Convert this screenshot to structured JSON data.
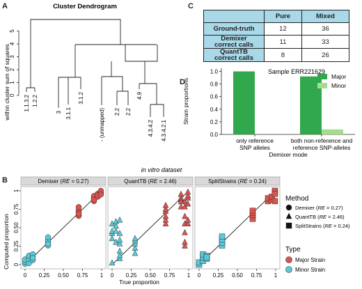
{
  "panels": {
    "A": "A",
    "B": "B",
    "C": "C",
    "D": "D"
  },
  "dendrogram": {
    "title": "Cluster Dendrogram",
    "ylabel": "within cluster sum of squares",
    "yticks": [
      "0",
      "1",
      "2",
      "3",
      "4",
      "5"
    ],
    "leaves": [
      "1.1.3.2",
      "1.2.2",
      "3",
      "3.1.1",
      "3.1.2",
      "- (unmapped)",
      "2.2",
      "2.2",
      "4.9",
      "4.3.4.2",
      "4.3.4.2.1"
    ]
  },
  "table": {
    "headers": [
      "",
      "Pure",
      "Mixed"
    ],
    "rows": [
      {
        "label": "Ground-truth",
        "pure": "12",
        "mixed": "36"
      },
      {
        "label_line1": "Demixer",
        "label_line2": "correct calls",
        "pure": "11",
        "mixed": "33"
      },
      {
        "label_line1": "QuantTB",
        "label_line2": "correct calls",
        "pure": "8",
        "mixed": "26"
      }
    ]
  },
  "colors": {
    "major_green": "#31a84d",
    "minor_green": "#a6dd8c",
    "major_red": "#d9534f",
    "minor_cyan": "#5ac8d8",
    "header_blue": "#a9d8e9",
    "strip": "#d9d9d9"
  },
  "chart_data": [
    {
      "type": "bar",
      "title": "Sample ERR221629",
      "xlabel": "Demixer mode",
      "ylabel": "Strain proportions",
      "categories_line1": [
        "only reference",
        "both non-reference and"
      ],
      "categories_line2": [
        "SNP alleles",
        "reference SNP-alleles"
      ],
      "ylim": [
        0,
        1.05
      ],
      "yticks": [
        "0.0",
        "0.2",
        "0.4",
        "0.6",
        "0.8",
        "1.0"
      ],
      "legend": [
        "Major",
        "Minor"
      ],
      "legend_position": "top-right",
      "series": [
        {
          "name": "Major",
          "values": [
            1.0,
            0.92
          ]
        },
        {
          "name": "Minor",
          "values": [
            0.0,
            0.08
          ]
        }
      ]
    },
    {
      "type": "scatter",
      "section_title": "in vitro dataset",
      "xlabel": "True proportion",
      "ylabel": "Computed proportion",
      "xticks": [
        "0",
        "0.25",
        "0.50",
        "0.75",
        "1"
      ],
      "yticks": [
        "0",
        "0.25",
        "0.50",
        "0.75",
        "1"
      ],
      "xlim": [
        0,
        1
      ],
      "ylim": [
        0,
        1
      ],
      "facets": [
        {
          "strip_prefix": "Demixer (",
          "strip_italic": "RE",
          "strip_suffix": " = 0.27)",
          "shape": "circle",
          "major": [
            [
              0.7,
              0.71
            ],
            [
              0.7,
              0.74
            ],
            [
              0.7,
              0.67
            ],
            [
              0.7,
              0.78
            ],
            [
              0.7,
              0.66
            ],
            [
              0.7,
              0.69
            ],
            [
              0.9,
              0.86
            ],
            [
              0.9,
              0.89
            ],
            [
              0.9,
              0.91
            ],
            [
              0.9,
              0.93
            ],
            [
              0.9,
              0.88
            ],
            [
              0.95,
              0.92
            ],
            [
              0.95,
              0.96
            ],
            [
              0.95,
              0.94
            ],
            [
              0.99,
              0.97
            ],
            [
              0.99,
              1.0
            ],
            [
              0.99,
              0.95
            ]
          ],
          "minor": [
            [
              0.0,
              0.01
            ],
            [
              0.0,
              0.04
            ],
            [
              0.0,
              0.07
            ],
            [
              0.05,
              0.02
            ],
            [
              0.05,
              0.08
            ],
            [
              0.05,
              0.12
            ],
            [
              0.1,
              0.06
            ],
            [
              0.1,
              0.11
            ],
            [
              0.1,
              0.14
            ],
            [
              0.1,
              0.09
            ],
            [
              0.3,
              0.26
            ],
            [
              0.3,
              0.3
            ],
            [
              0.3,
              0.33
            ],
            [
              0.3,
              0.37
            ],
            [
              0.3,
              0.28
            ]
          ]
        },
        {
          "strip_prefix": "QuantTB (",
          "strip_italic": "RE",
          "strip_suffix": " = 2.46)",
          "shape": "triangle",
          "major": [
            [
              0.7,
              0.55
            ],
            [
              0.7,
              0.6
            ],
            [
              0.7,
              0.65
            ],
            [
              0.7,
              0.72
            ],
            [
              0.7,
              0.75
            ],
            [
              0.7,
              0.8
            ],
            [
              0.9,
              0.88
            ],
            [
              0.9,
              0.9
            ],
            [
              0.9,
              0.85
            ],
            [
              0.9,
              0.78
            ],
            [
              0.9,
              0.95
            ],
            [
              0.95,
              0.25
            ],
            [
              0.95,
              0.3
            ],
            [
              0.95,
              0.43
            ],
            [
              0.95,
              0.55
            ],
            [
              0.95,
              0.65
            ],
            [
              0.95,
              0.78
            ],
            [
              0.95,
              0.85
            ],
            [
              0.99,
              0.55
            ],
            [
              0.99,
              0.6
            ],
            [
              0.99,
              0.82
            ],
            [
              0.99,
              0.9
            ],
            [
              0.99,
              0.93
            ],
            [
              0.99,
              0.98
            ]
          ],
          "minor": [
            [
              0.0,
              0.02
            ],
            [
              0.0,
              0.35
            ],
            [
              0.0,
              0.42
            ],
            [
              0.0,
              0.45
            ],
            [
              0.0,
              0.55
            ],
            [
              0.05,
              0.3
            ],
            [
              0.05,
              0.45
            ],
            [
              0.05,
              0.52
            ],
            [
              0.05,
              0.58
            ],
            [
              0.1,
              0.08
            ],
            [
              0.1,
              0.12
            ],
            [
              0.1,
              0.18
            ],
            [
              0.1,
              0.28
            ],
            [
              0.1,
              0.33
            ],
            [
              0.1,
              0.42
            ],
            [
              0.1,
              0.6
            ],
            [
              0.3,
              0.15
            ],
            [
              0.3,
              0.22
            ],
            [
              0.3,
              0.28
            ],
            [
              0.3,
              0.32
            ],
            [
              0.3,
              0.35
            ]
          ]
        },
        {
          "strip_prefix": "SplitStrains (",
          "strip_italic": "RE",
          "strip_suffix": " = 0.24)",
          "shape": "square",
          "major": [
            [
              0.7,
              0.62
            ],
            [
              0.7,
              0.67
            ],
            [
              0.7,
              0.7
            ],
            [
              0.7,
              0.73
            ],
            [
              0.9,
              0.86
            ],
            [
              0.9,
              0.9
            ],
            [
              0.95,
              0.88
            ],
            [
              0.95,
              0.92
            ],
            [
              0.99,
              0.98
            ],
            [
              0.99,
              1.0
            ],
            [
              0.99,
              0.96
            ],
            [
              0.99,
              0.86
            ]
          ],
          "minor": [
            [
              0.0,
              0.0
            ],
            [
              0.0,
              0.03
            ],
            [
              0.05,
              0.05
            ],
            [
              0.05,
              0.1
            ],
            [
              0.05,
              0.14
            ],
            [
              0.1,
              0.08
            ],
            [
              0.1,
              0.12
            ],
            [
              0.1,
              0.1
            ],
            [
              0.3,
              0.26
            ],
            [
              0.3,
              0.3
            ],
            [
              0.3,
              0.34
            ],
            [
              0.3,
              0.38
            ]
          ]
        }
      ],
      "legend": {
        "method_title": "Method",
        "methods": [
          {
            "shape": "circle",
            "prefix": "Demixer (",
            "italic": "RE",
            "suffix": " = 0.27)"
          },
          {
            "shape": "triangle",
            "prefix": "QuantTB (",
            "italic": "RE",
            "suffix": " = 2.46)"
          },
          {
            "shape": "square",
            "prefix": "SplitStrains (",
            "italic": "RE",
            "suffix": " = 0.24)"
          }
        ],
        "type_title": "Type",
        "types": [
          "Major Strain",
          "Minor Strain"
        ]
      }
    }
  ]
}
